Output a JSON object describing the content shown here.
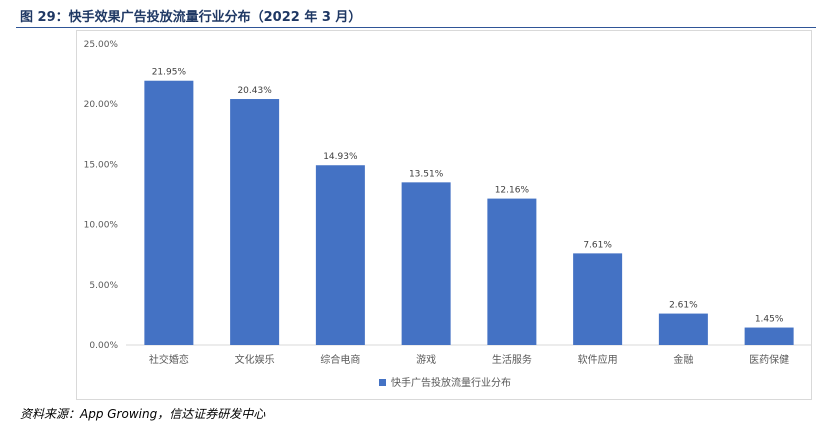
{
  "figure": {
    "title": "图 29：快手效果广告投放流量行业分布（2022 年 3 月）",
    "source": "资料来源：App Growing，信达证券研发中心"
  },
  "colors": {
    "bar": "#4472c4",
    "title": "#1f3864",
    "rule": "#2f5597",
    "axis_text": "#595959"
  },
  "chart_data": {
    "type": "bar",
    "categories": [
      "社交婚恋",
      "文化娱乐",
      "综合电商",
      "游戏",
      "生活服务",
      "软件应用",
      "金融",
      "医药保健"
    ],
    "series": [
      {
        "name": "快手广告投放流量行业分布",
        "values": [
          21.95,
          20.43,
          14.93,
          13.51,
          12.16,
          7.61,
          2.61,
          1.45
        ],
        "labels": [
          "21.95%",
          "20.43%",
          "14.93%",
          "13.51%",
          "12.16%",
          "7.61%",
          "2.61%",
          "1.45%"
        ]
      }
    ],
    "yticks": [
      0,
      5,
      10,
      15,
      20,
      25
    ],
    "ytick_labels": [
      "0.00%",
      "5.00%",
      "10.00%",
      "15.00%",
      "20.00%",
      "25.00%"
    ],
    "ylim": [
      0,
      25
    ],
    "grid": false,
    "legend_position": "bottom"
  }
}
